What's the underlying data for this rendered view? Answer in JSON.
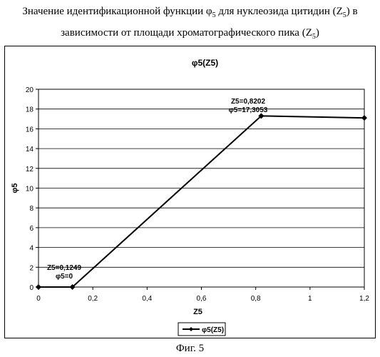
{
  "caption": {
    "line1_pre": "Значение идентификационной функции φ",
    "line1_sub": "5",
    "line1_mid": " для нуклеозида цитидин (Z",
    "line1_sub2": "5",
    "line1_post": ") в",
    "line2_pre": "зависимости от площади хроматографического пика (Z",
    "line2_sub": "5",
    "line2_post": ")"
  },
  "figure_label": "Фиг. 5",
  "chart_data": {
    "type": "line",
    "title": "φ5(Z5)",
    "xlabel": "Z5",
    "ylabel": "φ5",
    "xlim": [
      0,
      1.2
    ],
    "ylim": [
      0,
      20
    ],
    "x_ticks": [
      "0",
      "0,2",
      "0,4",
      "0,6",
      "0,8",
      "1",
      "1,2"
    ],
    "y_ticks": [
      "0",
      "2",
      "4",
      "6",
      "8",
      "10",
      "12",
      "14",
      "16",
      "18",
      "20"
    ],
    "grid": "horizontal",
    "legend": "bottom",
    "series": [
      {
        "name": "φ5(Z5)",
        "color": "#000000",
        "marker": "diamond",
        "x": [
          0,
          0.1249,
          0.8202,
          1.2
        ],
        "y": [
          0,
          0,
          17.3053,
          17.1
        ]
      }
    ],
    "annotations": [
      {
        "lines": [
          "Z5=0,1249",
          "φ5=0"
        ]
      },
      {
        "lines": [
          "Z5=0,8202",
          "φ5=17,3053"
        ]
      }
    ]
  }
}
